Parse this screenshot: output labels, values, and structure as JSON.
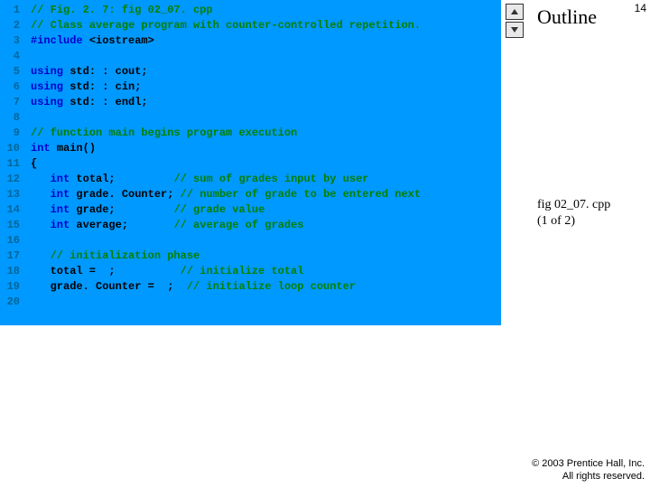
{
  "code": {
    "bg_color": "#0099ff",
    "line_number_color": "#006699",
    "comment_color": "#008000",
    "keyword_color": "#0000cc",
    "plain_color": "#000000",
    "font_family": "Courier New",
    "font_size": 12,
    "lines": [
      [
        {
          "t": "// Fig. 2. 7: fig 02_07. cpp",
          "c": "comment"
        }
      ],
      [
        {
          "t": "// Class average program with counter-controlled repetition.",
          "c": "comment"
        }
      ],
      [
        {
          "t": "#include ",
          "c": "keyword"
        },
        {
          "t": "<iostream>",
          "c": "stream"
        }
      ],
      [],
      [
        {
          "t": "using ",
          "c": "keyword"
        },
        {
          "t": "std: : cout;",
          "c": "plain"
        }
      ],
      [
        {
          "t": "using ",
          "c": "keyword"
        },
        {
          "t": "std: : cin;",
          "c": "plain"
        }
      ],
      [
        {
          "t": "using ",
          "c": "keyword"
        },
        {
          "t": "std: : endl;",
          "c": "plain"
        }
      ],
      [],
      [
        {
          "t": "// function main begins program execution",
          "c": "comment"
        }
      ],
      [
        {
          "t": "int ",
          "c": "keyword"
        },
        {
          "t": "main()",
          "c": "plain"
        }
      ],
      [
        {
          "t": "{",
          "c": "plain"
        }
      ],
      [
        {
          "t": "   ",
          "c": "plain"
        },
        {
          "t": "int ",
          "c": "keyword"
        },
        {
          "t": "total;         ",
          "c": "plain"
        },
        {
          "t": "// sum of grades input by user",
          "c": "comment"
        }
      ],
      [
        {
          "t": "   ",
          "c": "plain"
        },
        {
          "t": "int ",
          "c": "keyword"
        },
        {
          "t": "grade. Counter; ",
          "c": "plain"
        },
        {
          "t": "// number of grade to be entered next",
          "c": "comment"
        }
      ],
      [
        {
          "t": "   ",
          "c": "plain"
        },
        {
          "t": "int ",
          "c": "keyword"
        },
        {
          "t": "grade;         ",
          "c": "plain"
        },
        {
          "t": "// grade value",
          "c": "comment"
        }
      ],
      [
        {
          "t": "   ",
          "c": "plain"
        },
        {
          "t": "int ",
          "c": "keyword"
        },
        {
          "t": "average;       ",
          "c": "plain"
        },
        {
          "t": "// average of grades",
          "c": "comment"
        }
      ],
      [],
      [
        {
          "t": "   ",
          "c": "plain"
        },
        {
          "t": "// initialization phase",
          "c": "comment"
        }
      ],
      [
        {
          "t": "   total =  ;          ",
          "c": "plain"
        },
        {
          "t": "// initialize total",
          "c": "comment"
        }
      ],
      [
        {
          "t": "   grade. Counter =  ;  ",
          "c": "plain"
        },
        {
          "t": "// initialize loop counter",
          "c": "comment"
        }
      ],
      []
    ]
  },
  "outline": {
    "title": "Outline",
    "page_number": "14",
    "file_label_line1": "fig 02_07. cpp",
    "file_label_line2": "(1 of 2)"
  },
  "footer": {
    "line1": "© 2003 Prentice Hall, Inc.",
    "line2": "All rights reserved."
  }
}
